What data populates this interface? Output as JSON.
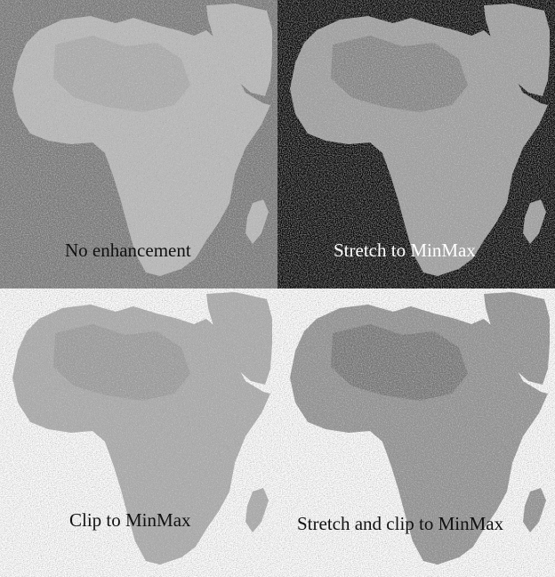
{
  "figure": {
    "panels": [
      {
        "caption": "No enhancement",
        "background": "#747474",
        "land_color": "#b9b9b9",
        "texture_color": "#e8e8e8",
        "shade_color": "#8e8e8e",
        "caption_color": "#111111"
      },
      {
        "caption": "Stretch to MinMax",
        "background": "#000000",
        "land_color": "#9d9d9d",
        "texture_color": "#ffffff",
        "shade_color": "#4a4a4a",
        "caption_color": "#ffffff"
      },
      {
        "caption": "Clip to MinMax",
        "background": "#ffffff",
        "land_color": "#a8a8a8",
        "texture_color": "#e4e4e4",
        "shade_color": "#7a7a7a",
        "caption_color": "#111111"
      },
      {
        "caption": "Stretch and clip to MinMax",
        "background": "#ffffff",
        "land_color": "#8d8d8d",
        "texture_color": "#f2f2f2",
        "shade_color": "#3e3e3e",
        "caption_color": "#111111"
      }
    ]
  }
}
